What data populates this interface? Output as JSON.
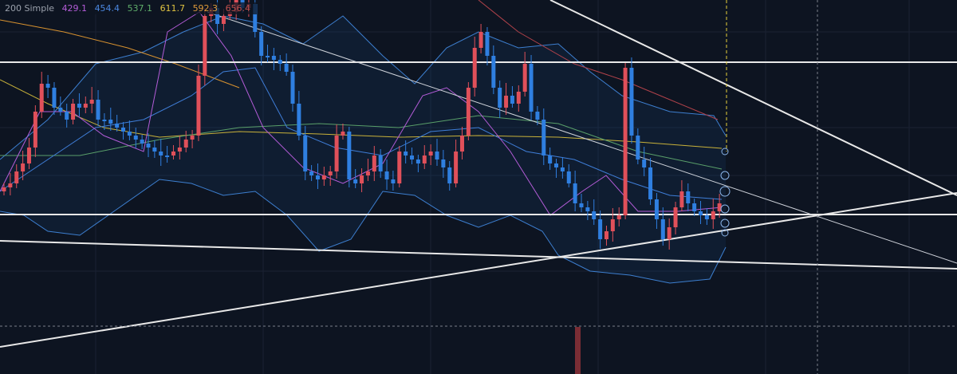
{
  "legend": {
    "label": "200 Simple",
    "values": [
      429.1,
      454.4,
      537.1,
      611.7,
      592.3,
      656.4
    ]
  }
}
